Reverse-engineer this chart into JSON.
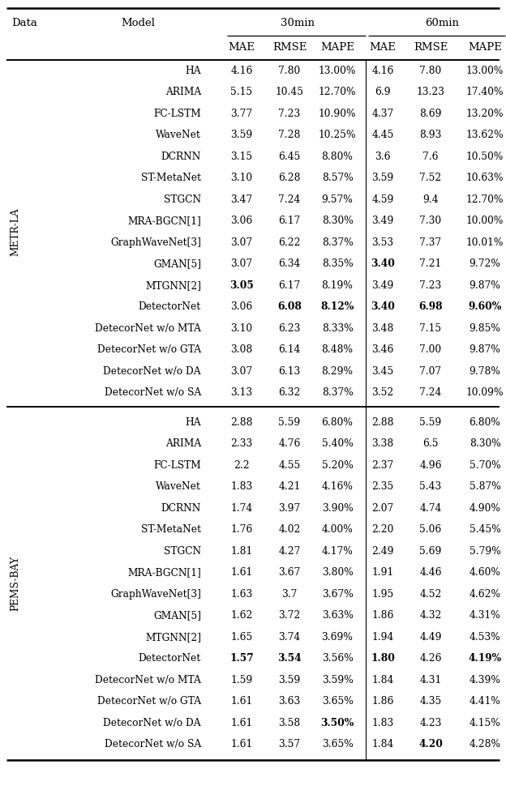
{
  "sections": [
    {
      "dataset": "METR-LA",
      "models": [
        {
          "name": "HA",
          "m30_mae": "4.16",
          "m30_rmse": "7.80",
          "m30_mape": "13.00%",
          "m60_mae": "4.16",
          "m60_rmse": "7.80",
          "m60_mape": "13.00%",
          "bold": []
        },
        {
          "name": "ARIMA",
          "m30_mae": "5.15",
          "m30_rmse": "10.45",
          "m30_mape": "12.70%",
          "m60_mae": "6.9",
          "m60_rmse": "13.23",
          "m60_mape": "17.40%",
          "bold": []
        },
        {
          "name": "FC-LSTM",
          "m30_mae": "3.77",
          "m30_rmse": "7.23",
          "m30_mape": "10.90%",
          "m60_mae": "4.37",
          "m60_rmse": "8.69",
          "m60_mape": "13.20%",
          "bold": []
        },
        {
          "name": "WaveNet",
          "m30_mae": "3.59",
          "m30_rmse": "7.28",
          "m30_mape": "10.25%",
          "m60_mae": "4.45",
          "m60_rmse": "8.93",
          "m60_mape": "13.62%",
          "bold": []
        },
        {
          "name": "DCRNN",
          "m30_mae": "3.15",
          "m30_rmse": "6.45",
          "m30_mape": "8.80%",
          "m60_mae": "3.6",
          "m60_rmse": "7.6",
          "m60_mape": "10.50%",
          "bold": []
        },
        {
          "name": "ST-MetaNet",
          "m30_mae": "3.10",
          "m30_rmse": "6.28",
          "m30_mape": "8.57%",
          "m60_mae": "3.59",
          "m60_rmse": "7.52",
          "m60_mape": "10.63%",
          "bold": []
        },
        {
          "name": "STGCN",
          "m30_mae": "3.47",
          "m30_rmse": "7.24",
          "m30_mape": "9.57%",
          "m60_mae": "4.59",
          "m60_rmse": "9.4",
          "m60_mape": "12.70%",
          "bold": []
        },
        {
          "name": "MRA-BGCN[1]",
          "m30_mae": "3.06",
          "m30_rmse": "6.17",
          "m30_mape": "8.30%",
          "m60_mae": "3.49",
          "m60_rmse": "7.30",
          "m60_mape": "10.00%",
          "bold": []
        },
        {
          "name": "GraphWaveNet[3]",
          "m30_mae": "3.07",
          "m30_rmse": "6.22",
          "m30_mape": "8.37%",
          "m60_mae": "3.53",
          "m60_rmse": "7.37",
          "m60_mape": "10.01%",
          "bold": []
        },
        {
          "name": "GMAN[5]",
          "m30_mae": "3.07",
          "m30_rmse": "6.34",
          "m30_mape": "8.35%",
          "m60_mae": "3.40",
          "m60_rmse": "7.21",
          "m60_mape": "9.72%",
          "bold": [
            "m60_mae"
          ]
        },
        {
          "name": "MTGNN[2]",
          "m30_mae": "3.05",
          "m30_rmse": "6.17",
          "m30_mape": "8.19%",
          "m60_mae": "3.49",
          "m60_rmse": "7.23",
          "m60_mape": "9.87%",
          "bold": [
            "m30_mae"
          ]
        },
        {
          "name": "DetectorNet",
          "m30_mae": "3.06",
          "m30_rmse": "6.08",
          "m30_mape": "8.12%",
          "m60_mae": "3.40",
          "m60_rmse": "6.98",
          "m60_mape": "9.60%",
          "bold": [
            "m30_rmse",
            "m30_mape",
            "m60_mae",
            "m60_rmse",
            "m60_mape"
          ]
        },
        {
          "name": "DetecorNet w/o MTA",
          "m30_mae": "3.10",
          "m30_rmse": "6.23",
          "m30_mape": "8.33%",
          "m60_mae": "3.48",
          "m60_rmse": "7.15",
          "m60_mape": "9.85%",
          "bold": []
        },
        {
          "name": "DetecorNet w/o GTA",
          "m30_mae": "3.08",
          "m30_rmse": "6.14",
          "m30_mape": "8.48%",
          "m60_mae": "3.46",
          "m60_rmse": "7.00",
          "m60_mape": "9.87%",
          "bold": []
        },
        {
          "name": "DetecorNet w/o DA",
          "m30_mae": "3.07",
          "m30_rmse": "6.13",
          "m30_mape": "8.29%",
          "m60_mae": "3.45",
          "m60_rmse": "7.07",
          "m60_mape": "9.78%",
          "bold": []
        },
        {
          "name": "DetecorNet w/o SA",
          "m30_mae": "3.13",
          "m30_rmse": "6.32",
          "m30_mape": "8.37%",
          "m60_mae": "3.52",
          "m60_rmse": "7.24",
          "m60_mape": "10.09%",
          "bold": []
        }
      ]
    },
    {
      "dataset": "PEMS-BAY",
      "models": [
        {
          "name": "HA",
          "m30_mae": "2.88",
          "m30_rmse": "5.59",
          "m30_mape": "6.80%",
          "m60_mae": "2.88",
          "m60_rmse": "5.59",
          "m60_mape": "6.80%",
          "bold": []
        },
        {
          "name": "ARIMA",
          "m30_mae": "2.33",
          "m30_rmse": "4.76",
          "m30_mape": "5.40%",
          "m60_mae": "3.38",
          "m60_rmse": "6.5",
          "m60_mape": "8.30%",
          "bold": []
        },
        {
          "name": "FC-LSTM",
          "m30_mae": "2.2",
          "m30_rmse": "4.55",
          "m30_mape": "5.20%",
          "m60_mae": "2.37",
          "m60_rmse": "4.96",
          "m60_mape": "5.70%",
          "bold": []
        },
        {
          "name": "WaveNet",
          "m30_mae": "1.83",
          "m30_rmse": "4.21",
          "m30_mape": "4.16%",
          "m60_mae": "2.35",
          "m60_rmse": "5.43",
          "m60_mape": "5.87%",
          "bold": []
        },
        {
          "name": "DCRNN",
          "m30_mae": "1.74",
          "m30_rmse": "3.97",
          "m30_mape": "3.90%",
          "m60_mae": "2.07",
          "m60_rmse": "4.74",
          "m60_mape": "4.90%",
          "bold": []
        },
        {
          "name": "ST-MetaNet",
          "m30_mae": "1.76",
          "m30_rmse": "4.02",
          "m30_mape": "4.00%",
          "m60_mae": "2.20",
          "m60_rmse": "5.06",
          "m60_mape": "5.45%",
          "bold": []
        },
        {
          "name": "STGCN",
          "m30_mae": "1.81",
          "m30_rmse": "4.27",
          "m30_mape": "4.17%",
          "m60_mae": "2.49",
          "m60_rmse": "5.69",
          "m60_mape": "5.79%",
          "bold": []
        },
        {
          "name": "MRA-BGCN[1]",
          "m30_mae": "1.61",
          "m30_rmse": "3.67",
          "m30_mape": "3.80%",
          "m60_mae": "1.91",
          "m60_rmse": "4.46",
          "m60_mape": "4.60%",
          "bold": []
        },
        {
          "name": "GraphWaveNet[3]",
          "m30_mae": "1.63",
          "m30_rmse": "3.7",
          "m30_mape": "3.67%",
          "m60_mae": "1.95",
          "m60_rmse": "4.52",
          "m60_mape": "4.62%",
          "bold": []
        },
        {
          "name": "GMAN[5]",
          "m30_mae": "1.62",
          "m30_rmse": "3.72",
          "m30_mape": "3.63%",
          "m60_mae": "1.86",
          "m60_rmse": "4.32",
          "m60_mape": "4.31%",
          "bold": []
        },
        {
          "name": "MTGNN[2]",
          "m30_mae": "1.65",
          "m30_rmse": "3.74",
          "m30_mape": "3.69%",
          "m60_mae": "1.94",
          "m60_rmse": "4.49",
          "m60_mape": "4.53%",
          "bold": []
        },
        {
          "name": "DetectorNet",
          "m30_mae": "1.57",
          "m30_rmse": "3.54",
          "m30_mape": "3.56%",
          "m60_mae": "1.80",
          "m60_rmse": "4.26",
          "m60_mape": "4.19%",
          "bold": [
            "m30_mae",
            "m30_rmse",
            "m60_mae",
            "m60_mape"
          ]
        },
        {
          "name": "DetecorNet w/o MTA",
          "m30_mae": "1.59",
          "m30_rmse": "3.59",
          "m30_mape": "3.59%",
          "m60_mae": "1.84",
          "m60_rmse": "4.31",
          "m60_mape": "4.39%",
          "bold": []
        },
        {
          "name": "DetecorNet w/o GTA",
          "m30_mae": "1.61",
          "m30_rmse": "3.63",
          "m30_mape": "3.65%",
          "m60_mae": "1.86",
          "m60_rmse": "4.35",
          "m60_mape": "4.41%",
          "bold": []
        },
        {
          "name": "DetecorNet w/o DA",
          "m30_mae": "1.61",
          "m30_rmse": "3.58",
          "m30_mape": "3.50%",
          "m60_mae": "1.83",
          "m60_rmse": "4.23",
          "m60_mape": "4.15%",
          "bold": [
            "m30_mape"
          ]
        },
        {
          "name": "DetecorNet w/o SA",
          "m30_mae": "1.61",
          "m30_rmse": "3.57",
          "m30_mape": "3.65%",
          "m60_mae": "1.84",
          "m60_rmse": "4.20",
          "m60_mape": "4.28%",
          "bold": [
            "m60_rmse"
          ]
        }
      ]
    }
  ],
  "bg_color": "#ffffff",
  "text_color": "#000000",
  "line_color": "#000000"
}
